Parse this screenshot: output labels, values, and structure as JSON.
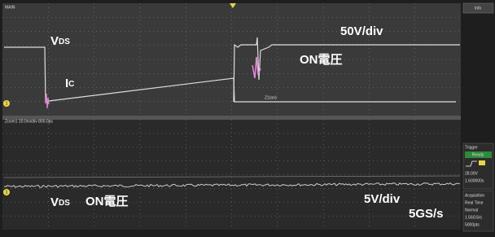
{
  "top_panel": {
    "tag": "MAIN",
    "vds": {
      "main": "V",
      "sub": "DS"
    },
    "ic": {
      "main": "I",
      "sub": "C"
    },
    "scale": "50V/div",
    "on_voltage": "ON電圧",
    "channel": "1",
    "zoom_label": "Z1(on)"
  },
  "bottom_panel": {
    "header": "Zoom1 20.0ns/div 800.0ps",
    "vds": {
      "main": "V",
      "sub": "DS"
    },
    "on_voltage": "ON電圧",
    "scale": "5V/div",
    "rate": "5GS/s",
    "channel": "1"
  },
  "side_panel": {
    "top_button": "Info",
    "trigger": {
      "title": "Trigger",
      "state": "Ready",
      "level": "28.00V",
      "time": "1.600000s"
    },
    "acquisition": {
      "title": "Acquisition",
      "mode": "Real Time",
      "type": "Normal",
      "rate": "1.56GS/s",
      "points": "5000pts"
    }
  }
}
